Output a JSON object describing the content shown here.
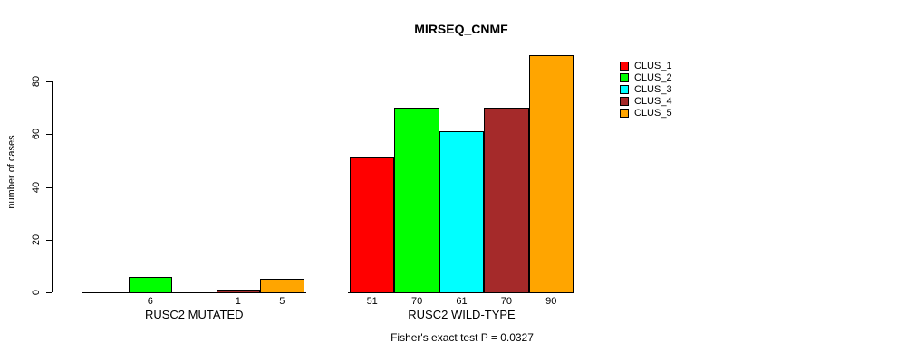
{
  "title": "MIRSEQ_CNMF",
  "chart_data": {
    "type": "bar",
    "title": "MIRSEQ_CNMF",
    "ylabel": "number of cases",
    "xlabel": "",
    "groups": [
      "RUSC2 MUTATED",
      "RUSC2 WILD-TYPE"
    ],
    "series": [
      {
        "name": "CLUS_1",
        "color": "#FF0000",
        "values": [
          0,
          51
        ]
      },
      {
        "name": "CLUS_2",
        "color": "#00FF00",
        "values": [
          6,
          70
        ]
      },
      {
        "name": "CLUS_3",
        "color": "#00FFFF",
        "values": [
          0,
          61
        ]
      },
      {
        "name": "CLUS_4",
        "color": "#A52A2A",
        "values": [
          1,
          70
        ]
      },
      {
        "name": "CLUS_5",
        "color": "#FFA500",
        "values": [
          5,
          90
        ]
      }
    ],
    "bar_value_labels_shown_only_when_nonzero": true,
    "yticks": [
      0,
      20,
      40,
      60,
      80
    ],
    "ylim": [
      0,
      90
    ],
    "grid": false,
    "legend_position": "right",
    "annotation": "Fisher's exact test P = 0.0327"
  }
}
